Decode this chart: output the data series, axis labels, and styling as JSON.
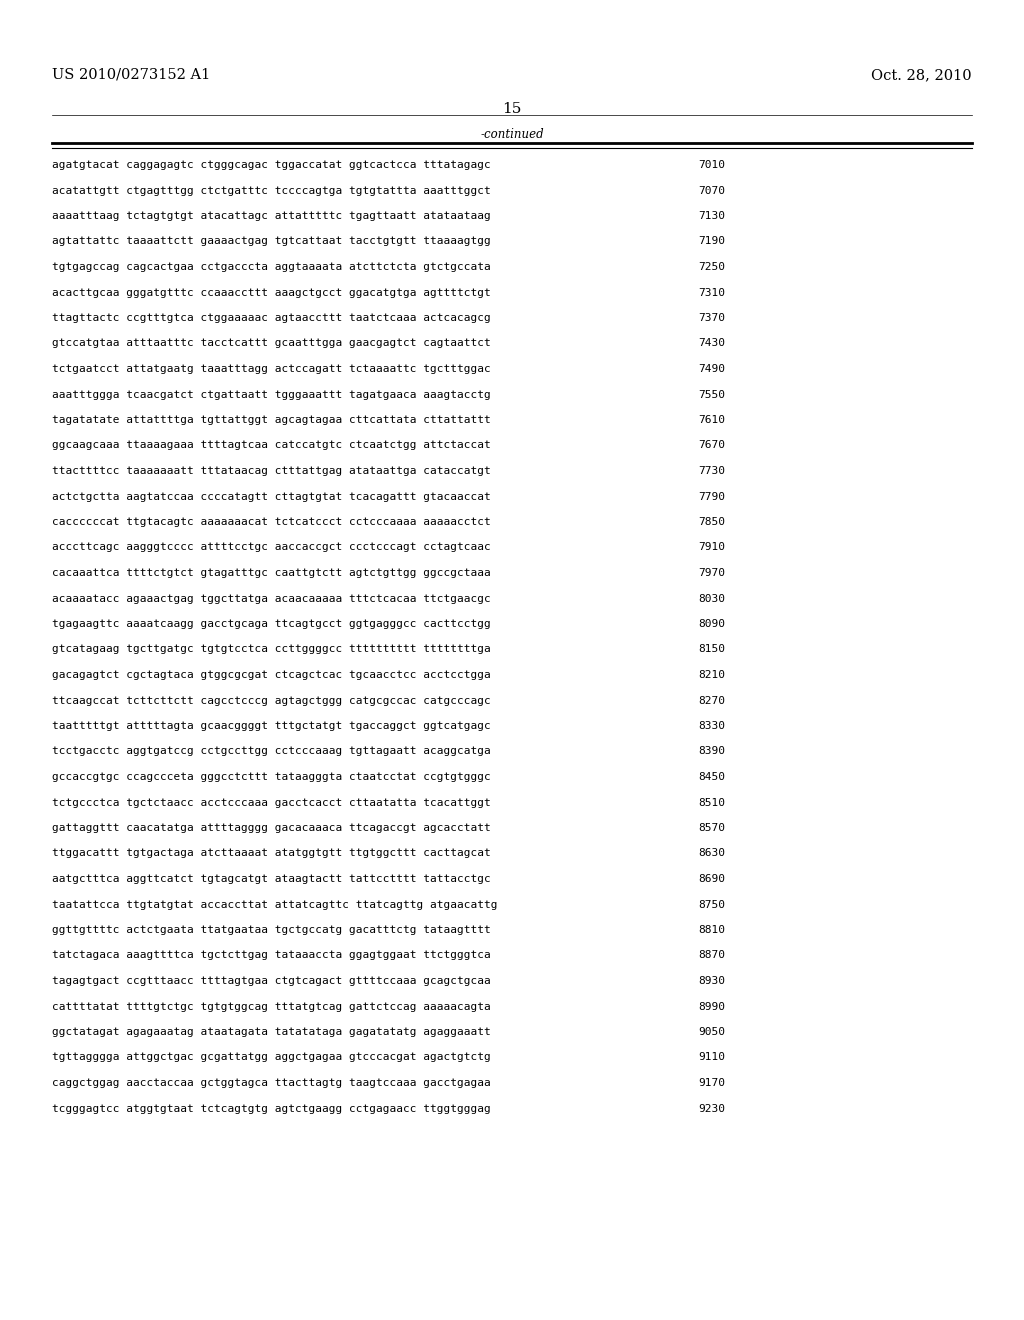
{
  "header_left": "US 2010/0273152 A1",
  "header_right": "Oct. 28, 2010",
  "page_number": "15",
  "continued_label": "-continued",
  "background_color": "#ffffff",
  "text_color": "#000000",
  "font_size_header": 10.5,
  "font_size_body": 8.0,
  "font_size_page": 11,
  "sequence_data": [
    [
      "agatgtacat caggagagtc ctgggcagac tggaccatat ggtcactcca tttatagagc",
      "7010"
    ],
    [
      "acatattgtt ctgagtttgg ctctgatttc tccccagtga tgtgtattta aaatttggct",
      "7070"
    ],
    [
      "aaaatttaag tctagtgtgt atacattagc attatttttc tgagttaatt atataataag",
      "7130"
    ],
    [
      "agtattattc taaaattctt gaaaactgag tgtcattaat tacctgtgtt ttaaaagtgg",
      "7190"
    ],
    [
      "tgtgagccag cagcactgaa cctgacccta aggtaaaata atcttctcta gtctgccata",
      "7250"
    ],
    [
      "acacttgcaa gggatgtttc ccaaaccttt aaagctgcct ggacatgtga agttttctgt",
      "7310"
    ],
    [
      "ttagttactc ccgtttgtca ctggaaaaac agtaaccttt taatctcaaa actcacagcg",
      "7370"
    ],
    [
      "gtccatgtaa atttaatttc tacctcattt gcaatttgga gaacgagtct cagtaattct",
      "7430"
    ],
    [
      "tctgaatcct attatgaatg taaatttagg actccagatt tctaaaattc tgctttggac",
      "7490"
    ],
    [
      "aaatttggga tcaacgatct ctgattaatt tgggaaattt tagatgaaca aaagtacctg",
      "7550"
    ],
    [
      "tagatatate attattttga tgttattggt agcagtagaa cttcattata cttattattt",
      "7610"
    ],
    [
      "ggcaagcaaa ttaaaagaaa ttttagtcaa catccatgtc ctcaatctgg attctaccat",
      "7670"
    ],
    [
      "ttacttttcc taaaaaaatt tttataacag ctttattgag atataattga cataccatgt",
      "7730"
    ],
    [
      "actctgctta aagtatccaa ccccatagtt cttagtgtat tcacagattt gtacaaccat",
      "7790"
    ],
    [
      "caccccccat ttgtacagtc aaaaaaacat tctcatccct cctcccaaaa aaaaacctct",
      "7850"
    ],
    [
      "acccttcagc aagggtcccc attttcctgc aaccaccgct ccctcccagt cctagtcaac",
      "7910"
    ],
    [
      "cacaaattca ttttctgtct gtagatttgc caattgtctt agtctgttgg ggccgctaaa",
      "7970"
    ],
    [
      "acaaaatacc agaaactgag tggcttatga acaacaaaaa tttctcacaa ttctgaacgc",
      "8030"
    ],
    [
      "tgagaagttc aaaatcaagg gacctgcaga ttcagtgcct ggtgagggcc cacttcctgg",
      "8090"
    ],
    [
      "gtcatagaag tgcttgatgc tgtgtcctca ccttggggcc tttttttttt ttttttttga",
      "8150"
    ],
    [
      "gacagagtct cgctagtaca gtggcgcgat ctcagctcac tgcaacctcc acctcctgga",
      "8210"
    ],
    [
      "ttcaagccat tcttcttctt cagcctcccg agtagctggg catgcgccac catgcccagc",
      "8270"
    ],
    [
      "taatttttgt atttttagta gcaacggggt tttgctatgt tgaccaggct ggtcatgagc",
      "8330"
    ],
    [
      "tcctgacctc aggtgatccg cctgccttgg cctcccaaag tgttagaatt acaggcatga",
      "8390"
    ],
    [
      "gccaccgtgc ccagccceta gggcctcttt tataagggta ctaatcctat ccgtgtgggc",
      "8450"
    ],
    [
      "tctgccctca tgctctaacc acctcccaaa gacctcacct cttaatatta tcacattggt",
      "8510"
    ],
    [
      "gattaggttt caacatatga attttagggg gacacaaaca ttcagaccgt agcacctatt",
      "8570"
    ],
    [
      "ttggacattt tgtgactaga atcttaaaat atatggtgtt ttgtggcttt cacttagcat",
      "8630"
    ],
    [
      "aatgctttca aggttcatct tgtagcatgt ataagtactt tattcctttt tattacctgc",
      "8690"
    ],
    [
      "taatattcca ttgtatgtat accaccttat attatcagttc ttatcagttg atgaacattg",
      "8750"
    ],
    [
      "ggttgttttc actctgaata ttatgaataa tgctgccatg gacatttctg tataagtttt",
      "8810"
    ],
    [
      "tatctagaca aaagttttca tgctcttgag tataaaccta ggagtggaat ttctgggtca",
      "8870"
    ],
    [
      "tagagtgact ccgtttaacc ttttagtgaa ctgtcagact gttttccaaa gcagctgcaa",
      "8930"
    ],
    [
      "cattttatat ttttgtctgc tgtgtggcag tttatgtcag gattctccag aaaaacagta",
      "8990"
    ],
    [
      "ggctatagat agagaaatag ataatagata tatatataga gagatatatg agaggaaatt",
      "9050"
    ],
    [
      "tgttagggga attggctgac gcgattatgg aggctgagaa gtcccacgat agactgtctg",
      "9110"
    ],
    [
      "caggctggag aacctaccaa gctggtagca ttacttagtg taagtccaaa gacctgagaa",
      "9170"
    ],
    [
      "tcgggagtcc atggtgtaat tctcagtgtg agtctgaagg cctgagaacc ttggtgggag",
      "9230"
    ]
  ]
}
